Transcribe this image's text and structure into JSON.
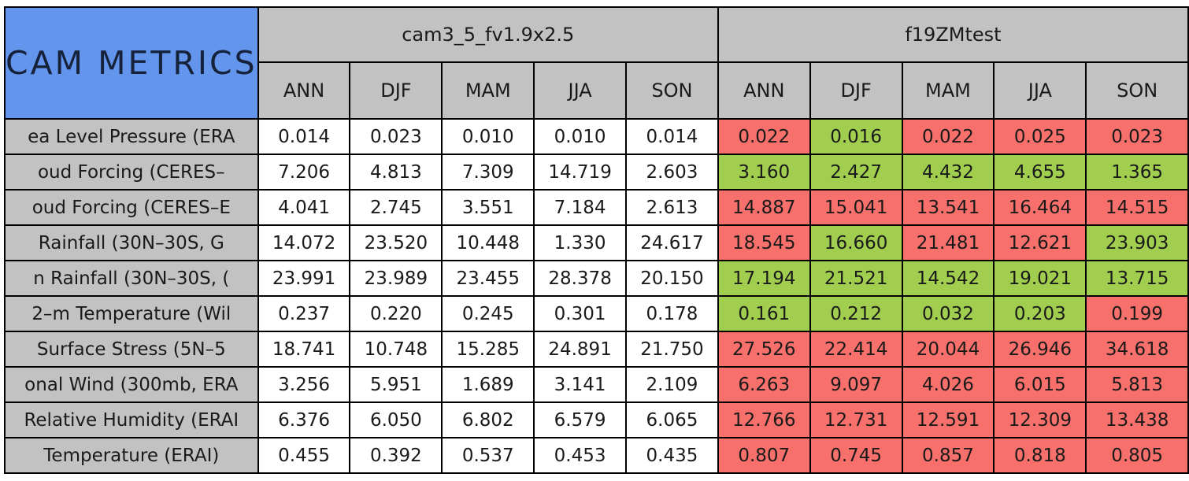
{
  "chart_data": {
    "type": "table",
    "title": "CAM METRICS",
    "groups": [
      {
        "name": "cam3_5_fv1.9x2.5",
        "seasons": [
          "ANN",
          "DJF",
          "MAM",
          "JJA",
          "SON"
        ]
      },
      {
        "name": "f19ZMtest",
        "seasons": [
          "ANN",
          "DJF",
          "MAM",
          "JJA",
          "SON"
        ]
      }
    ],
    "rows": [
      {
        "label": "ea Level Pressure (ERA",
        "control": [
          "0.014",
          "0.023",
          "0.010",
          "0.010",
          "0.014"
        ],
        "test": [
          "0.022",
          "0.016",
          "0.022",
          "0.025",
          "0.023"
        ],
        "test_colors": [
          "red",
          "green",
          "red",
          "red",
          "red"
        ]
      },
      {
        "label": "oud Forcing (CERES–",
        "control": [
          "7.206",
          "4.813",
          "7.309",
          "14.719",
          "2.603"
        ],
        "test": [
          "3.160",
          "2.427",
          "4.432",
          "4.655",
          "1.365"
        ],
        "test_colors": [
          "green",
          "green",
          "green",
          "green",
          "green"
        ]
      },
      {
        "label": "oud Forcing (CERES–E",
        "control": [
          "4.041",
          "2.745",
          "3.551",
          "7.184",
          "2.613"
        ],
        "test": [
          "14.887",
          "15.041",
          "13.541",
          "16.464",
          "14.515"
        ],
        "test_colors": [
          "red",
          "red",
          "red",
          "red",
          "red"
        ]
      },
      {
        "label": "Rainfall (30N–30S, G",
        "control": [
          "14.072",
          "23.520",
          "10.448",
          "1.330",
          "24.617"
        ],
        "test": [
          "18.545",
          "16.660",
          "21.481",
          "12.621",
          "23.903"
        ],
        "test_colors": [
          "red",
          "green",
          "red",
          "red",
          "green"
        ]
      },
      {
        "label": "n Rainfall (30N–30S, (",
        "control": [
          "23.991",
          "23.989",
          "23.455",
          "28.378",
          "20.150"
        ],
        "test": [
          "17.194",
          "21.521",
          "14.542",
          "19.021",
          "13.715"
        ],
        "test_colors": [
          "green",
          "green",
          "green",
          "green",
          "green"
        ]
      },
      {
        "label": "2–m Temperature (Wil",
        "control": [
          "0.237",
          "0.220",
          "0.245",
          "0.301",
          "0.178"
        ],
        "test": [
          "0.161",
          "0.212",
          "0.032",
          "0.203",
          "0.199"
        ],
        "test_colors": [
          "green",
          "green",
          "green",
          "green",
          "red"
        ]
      },
      {
        "label": "Surface Stress (5N–5",
        "control": [
          "18.741",
          "10.748",
          "15.285",
          "24.891",
          "21.750"
        ],
        "test": [
          "27.526",
          "22.414",
          "20.044",
          "26.946",
          "34.618"
        ],
        "test_colors": [
          "red",
          "red",
          "red",
          "red",
          "red"
        ]
      },
      {
        "label": "onal Wind (300mb, ERA",
        "control": [
          "3.256",
          "5.951",
          "1.689",
          "3.141",
          "2.109"
        ],
        "test": [
          "6.263",
          "9.097",
          "4.026",
          "6.015",
          "5.813"
        ],
        "test_colors": [
          "red",
          "red",
          "red",
          "red",
          "red"
        ]
      },
      {
        "label": "Relative Humidity (ERAI",
        "control": [
          "6.376",
          "6.050",
          "6.802",
          "6.579",
          "6.065"
        ],
        "test": [
          "12.766",
          "12.731",
          "12.591",
          "12.309",
          "13.438"
        ],
        "test_colors": [
          "red",
          "red",
          "red",
          "red",
          "red"
        ]
      },
      {
        "label": "Temperature (ERAI)",
        "control": [
          "0.455",
          "0.392",
          "0.537",
          "0.453",
          "0.435"
        ],
        "test": [
          "0.807",
          "0.745",
          "0.857",
          "0.818",
          "0.805"
        ],
        "test_colors": [
          "red",
          "red",
          "red",
          "red",
          "red"
        ]
      }
    ],
    "layout": {
      "title_bg": "#6495ED",
      "header_bg": "#C2C2C2",
      "label_bg": "#C2C2C2",
      "control_cell_bg": "#FFFFFF",
      "worse_cell_bg": "#F8706C",
      "better_cell_bg": "#A1CE4F",
      "border_color": "#000000"
    }
  }
}
